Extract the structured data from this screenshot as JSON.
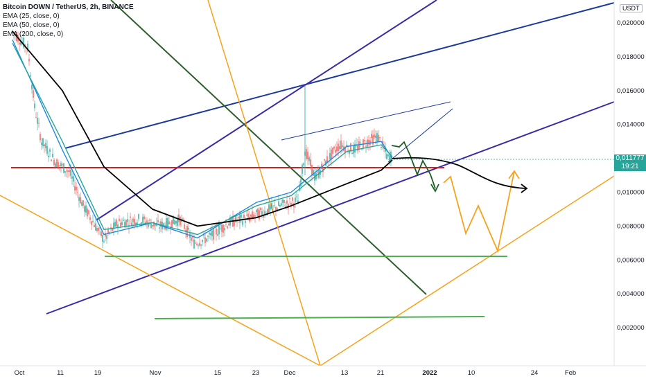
{
  "legend": {
    "title": "Bitcoin DOWN / TetherUS, 2h, BINANCE",
    "ema_lines": [
      "EMA (25, close, 0)",
      "EMA (50, close, 0)",
      "EMA (200, close, 0)"
    ]
  },
  "price_axis": {
    "unit": "USDT",
    "labels": [
      "0,020000",
      "0,018000",
      "0,016000",
      "0,014000",
      "0,012000",
      "0,010000",
      "0,008000",
      "0,006000",
      "0,004000",
      "0,002000"
    ],
    "last_price": "0,011777",
    "countdown": "19:21",
    "last_price_color": "#26a69a"
  },
  "time_axis": {
    "labels": [
      "Oct",
      "11",
      "19",
      "Nov",
      "15",
      "23",
      "Dec",
      "13",
      "21",
      "2022",
      "10",
      "24",
      "Feb"
    ],
    "bold_label": "2022"
  },
  "colors": {
    "ema25": "#1e88e5",
    "ema50": "#26a69a",
    "ema200": "#000000",
    "trend_blue": "#1b3a9c",
    "trend_purple": "#3b2aa8",
    "trend_green": "#2e5e2e",
    "trend_orange": "#f7a21b",
    "horizontal_red": "#c62828",
    "horizontal_green": "#4caf50",
    "projection_green": "#1b5e20",
    "candle_up": "#26a69a",
    "candle_down": "#ef5350"
  },
  "chart_data": {
    "type": "line",
    "title": "Bitcoin DOWN / TetherUS, 2h, BINANCE",
    "xlabel": "",
    "ylabel": "",
    "x": [
      "Oct",
      "11",
      "19",
      "Nov",
      "15",
      "23",
      "Dec",
      "13",
      "21",
      "2022"
    ],
    "ylim": [
      0,
      0.021
    ],
    "series": [
      {
        "name": "Bitcoin DOWN / TetherUS",
        "values": [
          0.0195,
          0.0122,
          0.0072,
          0.0082,
          0.0072,
          0.0098,
          0.0105,
          0.013,
          0.0133,
          0.0118
        ]
      },
      {
        "name": "EMA (25, close, 0)",
        "values": [
          0.019,
          0.0125,
          0.0075,
          0.0082,
          0.0073,
          0.0094,
          0.01,
          0.0127,
          0.013,
          0.012
        ]
      },
      {
        "name": "EMA (50, close, 0)",
        "values": [
          0.0188,
          0.013,
          0.0078,
          0.0082,
          0.0075,
          0.0092,
          0.0098,
          0.0124,
          0.0128,
          0.0121
        ]
      },
      {
        "name": "EMA (200, close, 0)",
        "values": [
          0.0195,
          0.016,
          0.0115,
          0.009,
          0.008,
          0.0085,
          0.0092,
          0.0105,
          0.0113,
          0.0119
        ]
      }
    ],
    "horizontal_levels": [
      0.0113,
      0.0062,
      0.0027
    ],
    "grid": false
  }
}
